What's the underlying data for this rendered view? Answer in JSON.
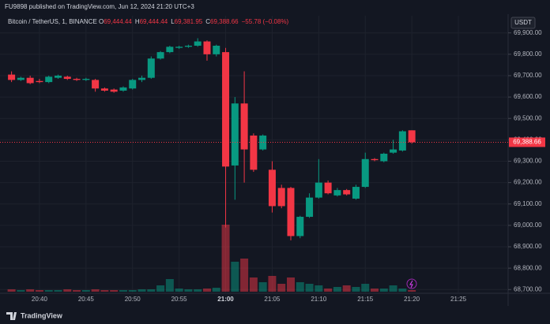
{
  "header": {
    "published": "FU9898 published on TradingView.com, Jun 12, 2024 21:20 UTC+3"
  },
  "footer": {
    "brand": "TradingView"
  },
  "chart_data": {
    "type": "candlestick",
    "legend": {
      "symbol": "Bitcoin / TetherUS, 1, BINANCE",
      "items": [
        {
          "key": "O",
          "text": "69,444.44"
        },
        {
          "key": "H",
          "text": "69,444.44"
        },
        {
          "key": "L",
          "text": "69,381.95"
        },
        {
          "key": "C",
          "text": "69,388.66"
        }
      ],
      "change": "−55.78 (−0.08%)"
    },
    "currency": "USDT",
    "last_price": {
      "value": 69388.66,
      "label": "69,388.66"
    },
    "up_color": "#089981",
    "down_color": "#f23645",
    "grid": true,
    "categories": [
      null,
      null,
      null,
      "20:40",
      null,
      null,
      null,
      null,
      "20:45",
      null,
      null,
      null,
      null,
      "20:50",
      null,
      null,
      null,
      null,
      "20:55",
      null,
      null,
      null,
      null,
      "21:00",
      null,
      null,
      null,
      null,
      "21:05",
      null,
      null,
      null,
      null,
      "21:10",
      null,
      null,
      null,
      null,
      "21:15",
      null,
      null,
      null,
      null,
      "21:20",
      null,
      null,
      null,
      null,
      "21:25"
    ],
    "open": [
      69705,
      69680,
      69690,
      69675,
      69670,
      69690,
      69695,
      69685,
      69680,
      69680,
      69640,
      69635,
      69630,
      69640,
      69680,
      69690,
      69780,
      69810,
      69830,
      69835,
      69840,
      69860,
      69800,
      69810,
      69280,
      69570,
      69420,
      69355,
      69260,
      69175,
      69175,
      68950,
      69040,
      69130,
      69200,
      69140,
      69165,
      69125,
      69180,
      69310,
      69300,
      69340,
      69350,
      69444.44,
      null,
      null,
      null,
      null,
      null
    ],
    "high": [
      69720,
      69695,
      69700,
      69685,
      69700,
      69705,
      69700,
      69690,
      69690,
      69685,
      69645,
      69640,
      69650,
      69685,
      69700,
      69790,
      69815,
      69840,
      69840,
      69845,
      69875,
      69865,
      69845,
      69830,
      69600,
      69720,
      69430,
      69425,
      69300,
      69190,
      69180,
      69045,
      69150,
      69310,
      69210,
      69175,
      69170,
      69190,
      69340,
      69315,
      69340,
      69400,
      69445,
      69444.44,
      null,
      null,
      null,
      null,
      null
    ],
    "low": [
      69670,
      69675,
      69660,
      69665,
      69665,
      69685,
      69680,
      69675,
      69675,
      69625,
      69625,
      69620,
      69625,
      69635,
      69670,
      69685,
      69775,
      69805,
      69825,
      69830,
      69835,
      69770,
      69790,
      68990,
      69120,
      69200,
      69250,
      69350,
      69060,
      69080,
      68930,
      68940,
      69035,
      69125,
      69145,
      69135,
      69140,
      69120,
      69175,
      69300,
      69295,
      69335,
      69345,
      69381.95,
      null,
      null,
      null,
      null,
      null
    ],
    "close": [
      69680,
      69690,
      69665,
      69670,
      69695,
      69700,
      69685,
      69680,
      69685,
      69640,
      69630,
      69625,
      69645,
      69680,
      69690,
      69780,
      69810,
      69835,
      69835,
      69840,
      69860,
      69800,
      69840,
      69275,
      69570,
      69355,
      69260,
      69420,
      69090,
      69090,
      68950,
      69040,
      69130,
      69200,
      69150,
      69165,
      69145,
      69180,
      69310,
      69305,
      69335,
      69355,
      69440,
      69388.66,
      null,
      null,
      null,
      null,
      null
    ],
    "volume": [
      3,
      2,
      3,
      2,
      2,
      2,
      3,
      2,
      2,
      3,
      2,
      2,
      2,
      2,
      3,
      3,
      8,
      16,
      4,
      3,
      3,
      4,
      5,
      85,
      38,
      42,
      18,
      12,
      20,
      10,
      18,
      12,
      10,
      8,
      4,
      6,
      8,
      6,
      10,
      4,
      4,
      8,
      4,
      2,
      null,
      null,
      null,
      null,
      null
    ],
    "ylim": [
      68690,
      69980
    ],
    "yticks": [
      {
        "value": 68700,
        "label": "68,700.00"
      },
      {
        "value": 68800,
        "label": "68,800.00"
      },
      {
        "value": 68900,
        "label": "68,900.00"
      },
      {
        "value": 69000,
        "label": "69,000.00"
      },
      {
        "value": 69100,
        "label": "69,100.00"
      },
      {
        "value": 69200,
        "label": "69,200.00"
      },
      {
        "value": 69300,
        "label": "69,300.00"
      },
      {
        "value": 69400,
        "label": "69,400.00"
      },
      {
        "value": 69500,
        "label": "69,500.00"
      },
      {
        "value": 69600,
        "label": "69,600.00"
      },
      {
        "value": 69700,
        "label": "69,700.00"
      },
      {
        "value": 69800,
        "label": "69,800.00"
      },
      {
        "value": 69900,
        "label": "69,900.00"
      }
    ]
  }
}
